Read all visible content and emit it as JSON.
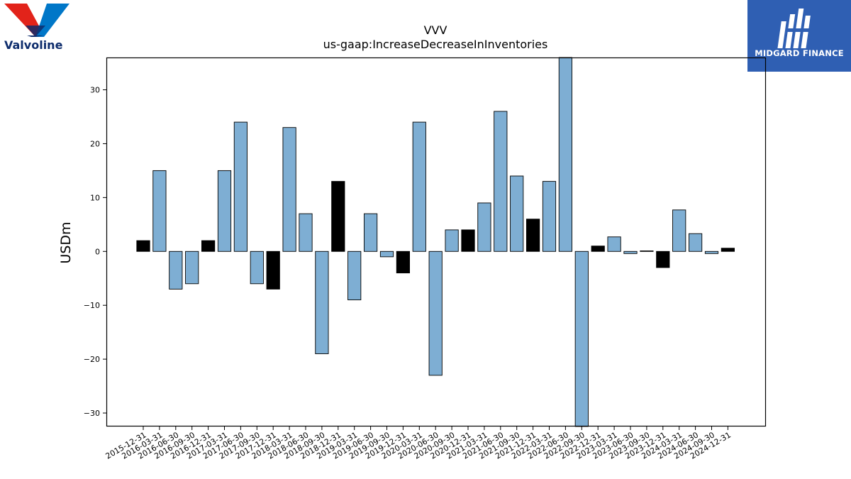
{
  "branding": {
    "left_logo_text": "Valvoline",
    "right_logo_text": "MIDGARD FINANCE"
  },
  "colors": {
    "bar_blue": "#7eaed3",
    "bar_black": "#000000",
    "logo_red": "#e2231a",
    "logo_blue": "#0077c8",
    "logo_navy": "#0d2c6c",
    "midgard_bg": "#2f5fb3"
  },
  "chart_data": {
    "type": "bar",
    "title": "VVV",
    "subtitle": "us-gaap:IncreaseDecreaseInInventories",
    "xlabel": "",
    "ylabel": "USDm",
    "ylim": [
      -32.5,
      36
    ],
    "yticks": [
      -30,
      -20,
      -10,
      0,
      10,
      20,
      30
    ],
    "grid": false,
    "categories": [
      "2015-12-31",
      "2016-03-31",
      "2016-06-30",
      "2016-09-30",
      "2016-12-31",
      "2017-03-31",
      "2017-06-30",
      "2017-09-30",
      "2017-12-31",
      "2018-03-31",
      "2018-06-30",
      "2018-09-30",
      "2018-12-31",
      "2019-03-31",
      "2019-06-30",
      "2019-09-30",
      "2019-12-31",
      "2020-03-31",
      "2020-06-30",
      "2020-09-30",
      "2020-12-31",
      "2021-03-31",
      "2021-06-30",
      "2021-09-30",
      "2021-12-31",
      "2022-03-31",
      "2022-06-30",
      "2022-09-30",
      "2022-12-31",
      "2023-03-31",
      "2023-06-30",
      "2023-09-30",
      "2023-12-31",
      "2024-03-31",
      "2024-06-30",
      "2024-09-30",
      "2024-12-31"
    ],
    "values": [
      2,
      15,
      -7,
      -6,
      2,
      15,
      24,
      -6,
      -7,
      23,
      7,
      -19,
      13,
      -9,
      7,
      -1,
      -4,
      24,
      -23,
      4,
      4,
      9,
      26,
      14,
      6,
      13,
      36,
      -32.5,
      1,
      2.7,
      -0.4,
      0.1,
      -3,
      7.7,
      3.3,
      -0.4,
      0.6
    ],
    "bar_colors": [
      "black",
      "blue",
      "blue",
      "blue",
      "black",
      "blue",
      "blue",
      "blue",
      "black",
      "blue",
      "blue",
      "blue",
      "black",
      "blue",
      "blue",
      "blue",
      "black",
      "blue",
      "blue",
      "blue",
      "black",
      "blue",
      "blue",
      "blue",
      "black",
      "blue",
      "blue",
      "blue",
      "black",
      "blue",
      "blue",
      "blue",
      "black",
      "blue",
      "blue",
      "blue",
      "black"
    ]
  }
}
